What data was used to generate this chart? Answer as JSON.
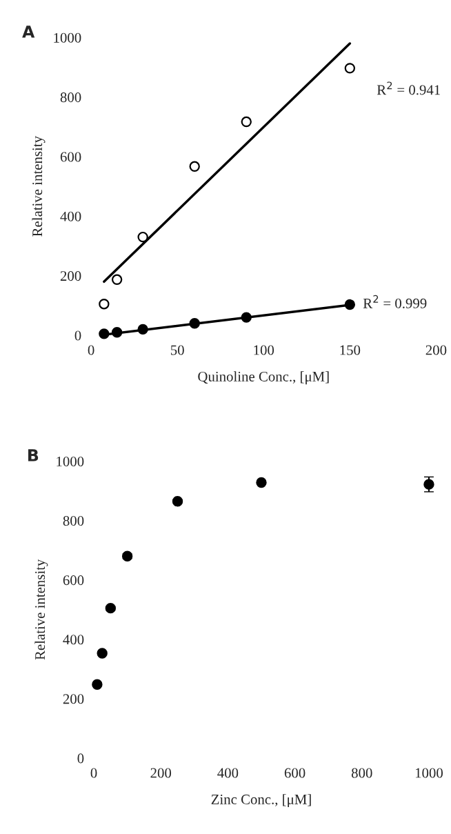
{
  "chart_data": [
    {
      "type": "scatter",
      "title": "A",
      "xlabel": "Quinoline Conc., [μM]",
      "ylabel": "Relative intensity",
      "xlim": [
        0,
        200
      ],
      "xticks": [
        0,
        50,
        100,
        150,
        200
      ],
      "ylim": [
        0,
        1000
      ],
      "yticks": [
        0,
        200,
        400,
        600,
        800,
        1000
      ],
      "grid": false,
      "marker": "circle",
      "series": [
        {
          "color": "#ffffff",
          "x": [
            7.5,
            15,
            30,
            60,
            90,
            150
          ],
          "values": [
            105,
            187,
            330,
            567,
            717,
            897
          ]
        },
        {
          "color": "#000000",
          "x": [
            7.5,
            15,
            30,
            60,
            90,
            150
          ],
          "values": [
            5,
            10,
            20,
            40,
            60,
            103
          ]
        },
        {
          "type": "line",
          "marker": "none",
          "color": "#000000",
          "x": [
            7.5,
            150
          ],
          "values": [
            180,
            980
          ]
        },
        {
          "type": "line",
          "marker": "none",
          "color": "#000000",
          "x": [
            7.5,
            152
          ],
          "values": [
            2,
            103
          ]
        }
      ],
      "annotations": [
        "R$^{2}$ = 0.941",
        {
          "text": "R$^{2}$ = 0.999",
          "x": 152,
          "y": 103
        }
      ]
    },
    {
      "type": "scatter",
      "title": "B",
      "xlabel": "Zinc Conc., [μM]",
      "ylabel": "Relative intensity",
      "xlim": [
        0,
        1000
      ],
      "xticks": [
        0,
        200,
        400,
        600,
        800,
        1000
      ],
      "ylim": [
        0,
        1000
      ],
      "yticks": [
        0,
        200,
        400,
        600,
        800,
        1000
      ],
      "grid": false,
      "marker": "circle",
      "series": [
        {
          "color": "#000000",
          "x": [
            10,
            25,
            50,
            100,
            250,
            500,
            1000
          ],
          "values": [
            248,
            353,
            505,
            680,
            865,
            928,
            922
          ],
          "errors": [
            5,
            5,
            5,
            8,
            5,
            5,
            25
          ]
        }
      ]
    }
  ]
}
